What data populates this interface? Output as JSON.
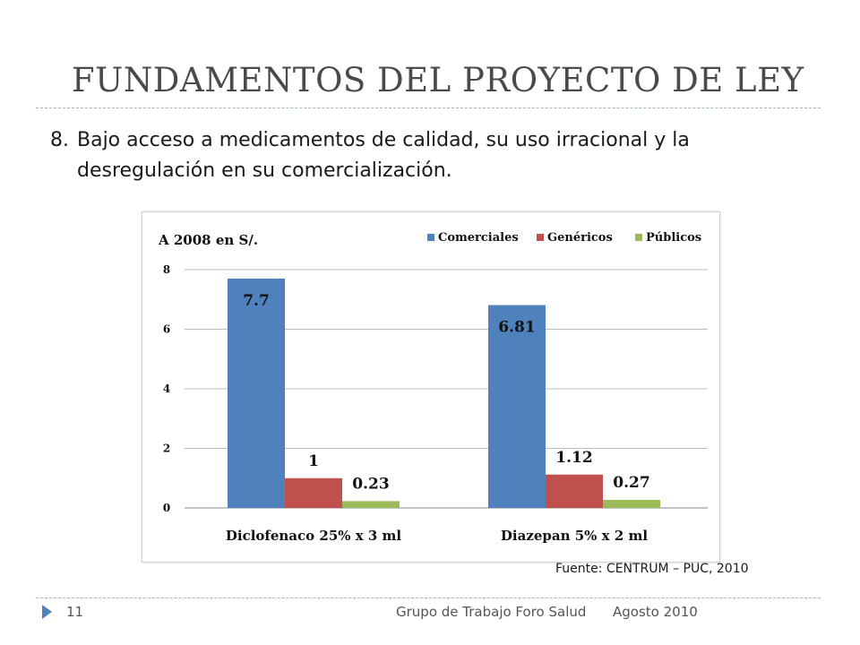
{
  "slide": {
    "title": "FUNDAMENTOS DEL PROYECTO DE LEY",
    "point_number": "8.",
    "point_text_line1": "Bajo acceso a medicamentos de calidad, su uso irracional y la",
    "point_text_line2": "desregulación en su comercialización.",
    "source": "Fuente: CENTRUM – PUC, 2010"
  },
  "footer": {
    "page_number": "11",
    "group": "Grupo de Trabajo Foro Salud",
    "date": "Agosto 2010"
  },
  "chart_data": {
    "type": "bar",
    "title": "A 2008 en S/.",
    "categories": [
      "Diclofenaco 25% x 3 ml",
      "Diazepan 5% x 2 ml"
    ],
    "series": [
      {
        "name": "Comerciales",
        "values": [
          7.7,
          6.81
        ],
        "labels": [
          "7.7",
          "6.81"
        ],
        "color": "#4f81bd"
      },
      {
        "name": "Genéricos",
        "values": [
          1,
          1.12
        ],
        "labels": [
          "1",
          "1.12"
        ],
        "color": "#c0504d"
      },
      {
        "name": "Públicos",
        "values": [
          0.23,
          0.27
        ],
        "labels": [
          "0.23",
          "0.27"
        ],
        "color": "#9bbb59"
      }
    ],
    "yticks": [
      "0",
      "2",
      "4",
      "6",
      "8"
    ],
    "ylim": [
      0,
      8
    ],
    "grid": true,
    "legend_position": "top-right"
  }
}
